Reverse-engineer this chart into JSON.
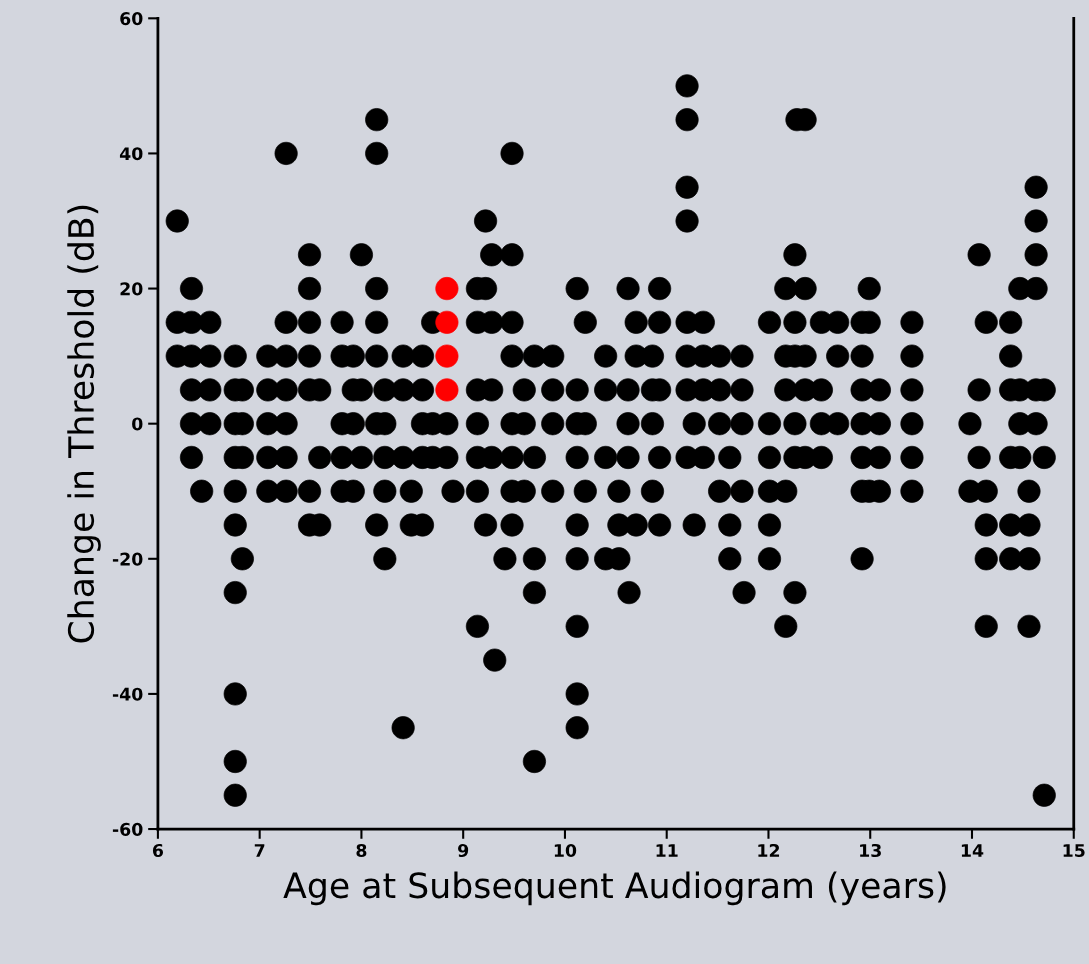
{
  "chart_data": {
    "type": "scatter",
    "xlabel": "Age at Subsequent Audiogram (years)",
    "ylabel": "Change in Threshold (dB)",
    "xlim": [
      6,
      15
    ],
    "xticks": [
      6,
      7,
      8,
      9,
      10,
      11,
      12,
      13,
      14,
      15
    ],
    "ylim": [
      -60,
      60
    ],
    "yticks": [
      -60,
      -40,
      -20,
      0,
      20,
      40,
      60
    ],
    "marker": "circle",
    "grid": false,
    "legend": false,
    "series": [
      {
        "color": "#000000",
        "x": [
          6.19,
          6.19,
          6.19,
          6.33,
          6.33,
          6.33,
          6.33,
          6.33,
          6.33,
          6.51,
          6.51,
          6.51,
          6.51,
          6.43,
          6.76,
          6.76,
          6.76,
          6.76,
          6.76,
          6.76,
          6.76,
          6.76,
          6.76,
          6.76,
          6.83,
          6.83,
          6.83,
          6.83,
          7.08,
          7.08,
          7.08,
          7.08,
          7.08,
          7.26,
          7.26,
          7.26,
          7.26,
          7.26,
          7.26,
          7.26,
          7.49,
          7.49,
          7.49,
          7.49,
          7.49,
          7.49,
          7.49,
          7.59,
          7.59,
          7.59,
          7.81,
          7.81,
          7.81,
          7.81,
          7.81,
          7.92,
          7.92,
          7.92,
          7.92,
          8.0,
          8.0,
          8.0,
          8.15,
          8.15,
          8.15,
          8.15,
          8.15,
          8.15,
          8.15,
          8.23,
          8.23,
          8.23,
          8.23,
          8.23,
          8.41,
          8.41,
          8.41,
          8.41,
          8.49,
          8.49,
          8.6,
          8.6,
          8.6,
          8.6,
          8.6,
          8.7,
          8.7,
          8.7,
          8.84,
          8.84,
          8.9,
          9.14,
          9.14,
          9.14,
          9.14,
          9.14,
          9.14,
          9.14,
          9.22,
          9.22,
          9.22,
          9.28,
          9.28,
          9.28,
          9.28,
          9.31,
          9.48,
          9.48,
          9.48,
          9.48,
          9.48,
          9.48,
          9.48,
          9.48,
          9.41,
          9.6,
          9.6,
          9.6,
          9.7,
          9.7,
          9.7,
          9.7,
          9.7,
          9.88,
          9.88,
          9.88,
          9.88,
          10.12,
          10.12,
          10.12,
          10.12,
          10.12,
          10.12,
          10.12,
          10.12,
          10.12,
          10.2,
          10.2,
          10.2,
          10.4,
          10.4,
          10.4,
          10.4,
          10.53,
          10.53,
          10.53,
          10.62,
          10.62,
          10.62,
          10.62,
          10.63,
          10.7,
          10.7,
          10.7,
          10.86,
          10.86,
          10.86,
          10.86,
          10.93,
          10.93,
          10.93,
          10.93,
          10.93,
          11.2,
          11.2,
          11.2,
          11.2,
          11.2,
          11.2,
          11.2,
          11.2,
          11.27,
          11.27,
          11.36,
          11.36,
          11.36,
          11.36,
          11.52,
          11.52,
          11.52,
          11.52,
          11.62,
          11.62,
          11.62,
          11.74,
          11.74,
          11.74,
          11.74,
          11.76,
          12.01,
          12.01,
          12.01,
          12.01,
          12.01,
          12.01,
          12.17,
          12.17,
          12.17,
          12.17,
          12.17,
          12.26,
          12.26,
          12.26,
          12.26,
          12.26,
          12.26,
          12.28,
          12.36,
          12.36,
          12.36,
          12.36,
          12.36,
          12.52,
          12.52,
          12.52,
          12.52,
          12.68,
          12.68,
          12.68,
          12.92,
          12.92,
          12.92,
          12.92,
          12.92,
          12.92,
          12.92,
          12.99,
          12.99,
          12.99,
          13.09,
          13.09,
          13.09,
          13.09,
          13.41,
          13.41,
          13.41,
          13.41,
          13.41,
          13.41,
          13.98,
          13.98,
          14.07,
          14.07,
          14.07,
          14.14,
          14.14,
          14.14,
          14.14,
          14.14,
          14.38,
          14.38,
          14.38,
          14.38,
          14.38,
          14.38,
          14.47,
          14.47,
          14.47,
          14.47,
          14.56,
          14.56,
          14.56,
          14.56,
          14.63,
          14.63,
          14.63,
          14.63,
          14.63,
          14.63,
          14.71,
          14.71,
          14.71
        ],
        "values": [
          30,
          15,
          10,
          20,
          15,
          10,
          5,
          0,
          -5,
          15,
          10,
          5,
          0,
          -10,
          -15,
          -25,
          -40,
          -50,
          -55,
          10,
          5,
          0,
          -5,
          -10,
          -20,
          5,
          0,
          -5,
          10,
          5,
          0,
          -5,
          -10,
          40,
          15,
          10,
          5,
          0,
          -5,
          -10,
          25,
          20,
          15,
          10,
          5,
          -10,
          -15,
          5,
          -5,
          -15,
          15,
          10,
          0,
          -5,
          -10,
          10,
          5,
          0,
          -10,
          25,
          5,
          -5,
          45,
          40,
          20,
          15,
          10,
          0,
          -15,
          5,
          0,
          -5,
          -10,
          -20,
          10,
          5,
          -5,
          -45,
          -15,
          -10,
          10,
          5,
          0,
          -5,
          -15,
          15,
          0,
          -5,
          0,
          -5,
          -10,
          20,
          15,
          5,
          0,
          -5,
          -10,
          -30,
          30,
          20,
          -15,
          25,
          15,
          5,
          -5,
          -35,
          40,
          25,
          15,
          10,
          0,
          -5,
          -10,
          -15,
          -20,
          5,
          0,
          -10,
          10,
          -5,
          -20,
          -25,
          -50,
          10,
          5,
          0,
          -10,
          20,
          5,
          0,
          -5,
          -15,
          -20,
          -30,
          -40,
          -45,
          15,
          0,
          -10,
          10,
          5,
          -5,
          -20,
          -10,
          -15,
          -20,
          5,
          0,
          -5,
          20,
          -25,
          15,
          10,
          -15,
          10,
          5,
          0,
          -10,
          20,
          15,
          5,
          -5,
          -15,
          50,
          45,
          35,
          30,
          15,
          10,
          5,
          -5,
          -15,
          0,
          15,
          10,
          5,
          -5,
          10,
          5,
          0,
          -10,
          -5,
          -15,
          -20,
          10,
          5,
          0,
          -10,
          -25,
          15,
          0,
          -5,
          -10,
          -15,
          -20,
          20,
          10,
          5,
          -10,
          -30,
          25,
          15,
          10,
          0,
          -5,
          -25,
          45,
          45,
          20,
          10,
          5,
          -5,
          15,
          5,
          0,
          -5,
          15,
          10,
          0,
          15,
          10,
          5,
          0,
          -5,
          -10,
          -20,
          20,
          15,
          -10,
          5,
          0,
          -5,
          -10,
          15,
          10,
          5,
          0,
          -5,
          -10,
          0,
          -10,
          25,
          5,
          -5,
          15,
          -10,
          -15,
          -20,
          -30,
          15,
          10,
          5,
          -5,
          -15,
          -20,
          20,
          5,
          0,
          -5,
          -10,
          -15,
          -20,
          -30,
          35,
          30,
          25,
          20,
          5,
          0,
          5,
          -5,
          -55
        ]
      },
      {
        "color": "#ff0000",
        "x": [
          8.84,
          8.84,
          8.84,
          8.84
        ],
        "values": [
          20,
          15,
          10,
          5
        ]
      }
    ]
  }
}
